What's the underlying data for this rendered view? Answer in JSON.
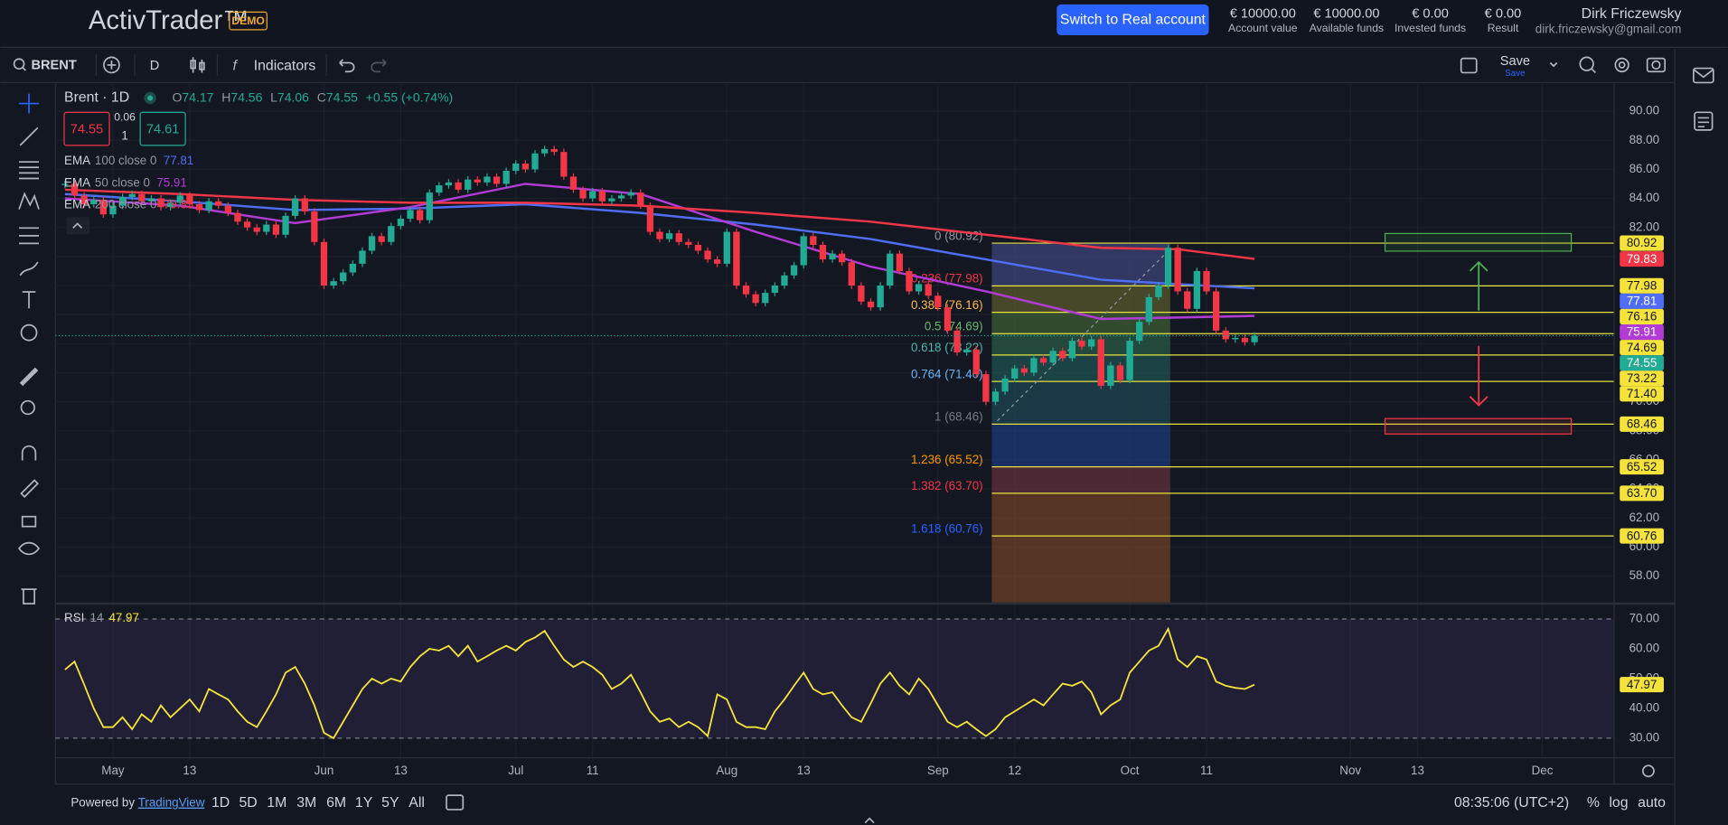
{
  "header": {
    "logo": "ActivTrader™",
    "badge": "DEMO",
    "button": "Switch to Real account",
    "stats": [
      {
        "value": "€ 10000.00",
        "label": "Account value"
      },
      {
        "value": "€ 10000.00",
        "label": "Available funds"
      },
      {
        "value": "€ 0.00",
        "label": "Invested funds"
      },
      {
        "value": "€ 0.00",
        "label": "Result"
      }
    ],
    "user": {
      "name": "Dirk Friczewsky",
      "email": "dirk.friczewsky@gmail.com"
    }
  },
  "toolbar": {
    "symbol": "BRENT",
    "interval": "D",
    "indicators": "Indicators",
    "save": "Save",
    "save_sub": "Save"
  },
  "legend": {
    "ohlc": [
      {
        "k": "O",
        "v": "74.17"
      },
      {
        "k": "H",
        "v": "74.56"
      },
      {
        "k": "L",
        "v": "74.06"
      },
      {
        "k": "C",
        "v": "74.55"
      }
    ],
    "change": "+0.55 (+0.74%)"
  },
  "trade": {
    "sell": "74.55",
    "spread": "0.06",
    "qty": "1",
    "buy": "74.61"
  },
  "chart_data": [
    {
      "type": "candlestick",
      "title": "Brent · 1D",
      "up_color": "#22ab94",
      "down_color": "#f23645",
      "grid": true,
      "values": [
        85.0,
        84.2,
        83.6,
        83.9,
        82.9,
        83.5,
        84.1,
        84.3,
        83.8,
        84.0,
        83.4,
        83.7,
        84.2,
        83.6,
        83.2,
        83.8,
        83.5,
        83.0,
        82.4,
        82.0,
        81.7,
        82.2,
        81.5,
        82.8,
        84.0,
        83.1,
        81.0,
        78.0,
        78.3,
        78.9,
        79.5,
        80.4,
        81.4,
        81.0,
        82.1,
        82.6,
        83.2,
        82.5,
        84.4,
        84.9,
        85.1,
        84.6,
        85.3,
        85.1,
        85.5,
        85.0,
        85.9,
        86.4,
        86.0,
        87.1,
        87.4,
        87.2,
        85.5,
        84.6,
        84.0,
        84.5,
        83.8,
        84.0,
        84.2,
        84.4,
        83.5,
        81.7,
        81.2,
        81.6,
        81.0,
        80.8,
        80.4,
        79.8,
        79.5,
        81.7,
        78.0,
        77.4,
        76.8,
        77.5,
        78.0,
        78.7,
        79.4,
        81.4,
        80.8,
        79.8,
        80.2,
        79.6,
        78.0,
        76.9,
        76.5,
        78.0,
        80.2,
        79.0,
        77.6,
        78.1,
        77.3,
        76.5,
        74.9,
        73.4,
        73.6,
        71.9,
        70.0,
        70.7,
        71.6,
        72.3,
        72.0,
        73.0,
        72.7,
        73.5,
        73.0,
        74.2,
        73.8,
        74.3,
        71.1,
        72.5,
        71.5,
        74.2,
        75.5,
        77.2,
        78.0,
        80.6,
        77.6,
        76.4,
        79.0,
        77.6,
        74.9,
        74.3,
        74.4,
        74.1,
        74.55
      ],
      "xlim": [
        -1,
        161.5
      ],
      "ylim": [
        56.18,
        91.82
      ],
      "yticks": [
        {
          "value": 58,
          "label": "58.00"
        },
        {
          "value": 60,
          "label": "60.00"
        },
        {
          "value": 62,
          "label": "62.00"
        },
        {
          "value": 64,
          "label": "64.00"
        },
        {
          "value": 66,
          "label": "66.00"
        },
        {
          "value": 68,
          "label": "68.00"
        },
        {
          "value": 70,
          "label": "70.00"
        },
        {
          "value": 72,
          "label": "72.00"
        },
        {
          "value": 74,
          "label": "74.00"
        },
        {
          "value": 76,
          "label": "76.00"
        },
        {
          "value": 78,
          "label": "78.00"
        },
        {
          "value": 80,
          "label": "80.00"
        },
        {
          "value": 82,
          "label": "82.00"
        },
        {
          "value": 84,
          "label": "84.00"
        },
        {
          "value": 86,
          "label": "86.00"
        },
        {
          "value": 88,
          "label": "88.00"
        },
        {
          "value": 90,
          "label": "90.00"
        }
      ],
      "ema": [
        {
          "name": "EMA",
          "params": "100 close 0",
          "last": 77.81,
          "color": "#4f6ef7",
          "x": [
            0,
            12,
            24,
            36,
            48,
            60,
            72,
            84,
            96,
            108,
            116,
            124
          ],
          "values": [
            84.3,
            83.8,
            83.2,
            83.3,
            83.6,
            83.0,
            82.2,
            81.2,
            79.8,
            78.4,
            78.1,
            77.81
          ]
        },
        {
          "name": "EMA",
          "params": "50 close 0",
          "last": 75.91,
          "color": "#b23bd6",
          "x": [
            0,
            12,
            24,
            36,
            48,
            60,
            72,
            84,
            96,
            108,
            116,
            124
          ],
          "values": [
            84.0,
            83.5,
            82.3,
            83.4,
            85.0,
            84.3,
            81.7,
            79.3,
            77.6,
            75.7,
            75.8,
            75.91
          ]
        },
        {
          "name": "EMA",
          "params": "200 close 0",
          "last": 79.83,
          "color": "#f23645",
          "x": [
            0,
            12,
            24,
            36,
            48,
            60,
            72,
            84,
            96,
            108,
            116,
            124
          ],
          "values": [
            84.6,
            84.3,
            83.9,
            83.7,
            83.7,
            83.5,
            83.0,
            82.4,
            81.5,
            80.6,
            80.5,
            79.83
          ]
        }
      ],
      "fib": [
        {
          "text": "0 (80.92)",
          "value": 80.92,
          "tag": "80.92",
          "color": "#9598a1",
          "fill": "#3c4478"
        },
        {
          "text": "0.236 (77.98)",
          "value": 77.98,
          "tag": "77.98",
          "color": "#f23645",
          "fill": "#5a5a2c"
        },
        {
          "text": "0.382 (76.16)",
          "value": 76.16,
          "tag": "76.16",
          "color": "#ffb74d",
          "fill": "#3e5e34"
        },
        {
          "text": "0.5 (74.69)",
          "value": 74.69,
          "tag": "74.69",
          "color": "#66bb6a",
          "fill": "#2a5a46"
        },
        {
          "text": "0.618 (73.22)",
          "value": 73.22,
          "tag": "73.22",
          "color": "#4db6ac",
          "fill": "#1f5352"
        },
        {
          "text": "0.764 (71.40)",
          "value": 71.4,
          "tag": "71.40",
          "color": "#64b5f6",
          "fill": "#1d4452"
        },
        {
          "text": "1 (68.46)",
          "value": 68.46,
          "tag": "68.46",
          "color": "#787b86",
          "fill": "#1f3a78"
        },
        {
          "text": "1.236 (65.52)",
          "value": 65.52,
          "tag": "65.52",
          "color": "#ff9800",
          "fill": "#60303c"
        },
        {
          "text": "1.382 (63.70)",
          "value": 63.7,
          "tag": "63.70",
          "color": "#f23645",
          "fill": "#6e4026"
        },
        {
          "text": "1.618 (60.76)",
          "value": 60.76,
          "tag": "60.76",
          "color": "#2962ff",
          "fill": "#6e4026"
        }
      ]
    },
    {
      "type": "line",
      "title": "RSI",
      "params": "14",
      "last": 47.97,
      "color": "#f5e33b",
      "band_color": "#7e57c2",
      "values": [
        53,
        55.7,
        48,
        40,
        33.7,
        33.7,
        37,
        33,
        38,
        35.5,
        41,
        37,
        40,
        43,
        39,
        46.5,
        44.7,
        43,
        39,
        35.5,
        33.7,
        39,
        44.7,
        52,
        53.9,
        48.3,
        41,
        31.8,
        30,
        35.5,
        41,
        46.5,
        50,
        48.3,
        50,
        49,
        53.9,
        57.5,
        60,
        59.4,
        61,
        57.5,
        61,
        55.7,
        57.5,
        59.4,
        61,
        59.4,
        62.3,
        63.8,
        66,
        61,
        56.4,
        53.9,
        55.7,
        53.9,
        51.3,
        46.5,
        48.3,
        51.3,
        45.4,
        39,
        35.5,
        36.6,
        33.7,
        35.5,
        33.7,
        30.7,
        44.7,
        43,
        35.5,
        33.7,
        33.7,
        33,
        39,
        43,
        47.6,
        52,
        46.5,
        44.7,
        45.4,
        41,
        37,
        35.5,
        41.7,
        48.3,
        52,
        47.6,
        44.7,
        50,
        46.5,
        41,
        35.5,
        33.7,
        35.5,
        33,
        30.7,
        33,
        37,
        39,
        41,
        43,
        41,
        44.7,
        48.3,
        47.6,
        49,
        45.4,
        38,
        41,
        43,
        52,
        55.7,
        59.4,
        61,
        66.7,
        56.4,
        53.9,
        57.5,
        56.4,
        49,
        47.6,
        46.9,
        46.5,
        47.97
      ],
      "xlim": [
        -1,
        161.5
      ],
      "ylim": [
        23.4,
        74.8
      ],
      "yticks": [
        {
          "value": 30,
          "label": "30.00"
        },
        {
          "value": 40,
          "label": "40.00"
        },
        {
          "value": 50,
          "label": "50.00"
        },
        {
          "value": 60,
          "label": "60.00"
        },
        {
          "value": 70,
          "label": "70.00"
        }
      ],
      "xticks": [
        {
          "value": 5,
          "label": "May"
        },
        13,
        {
          "value": 27,
          "label": "Jun"
        },
        {
          "value": 35,
          "label": "13"
        },
        {
          "value": 47,
          "label": "Jul"
        },
        {
          "value": 55,
          "label": "11"
        },
        {
          "value": 69,
          "label": "Aug"
        },
        {
          "value": 77,
          "label": "13"
        },
        {
          "value": 91,
          "label": "Sep"
        },
        {
          "value": 99,
          "label": "12"
        },
        {
          "value": 111,
          "label": "Oct"
        },
        {
          "value": 119,
          "label": "11"
        },
        {
          "value": 134,
          "label": "Nov"
        },
        {
          "value": 141,
          "label": "13"
        },
        {
          "value": 154,
          "label": "Dec"
        }
      ]
    }
  ],
  "footer": {
    "powered": "Powered by",
    "brand": "TradingView",
    "ranges": [
      "1D",
      "5D",
      "1M",
      "3M",
      "6M",
      "1Y",
      "5Y",
      "All"
    ],
    "time": "08:35:06 (UTC+2)",
    "percent": "%",
    "log": "log",
    "auto": "auto"
  }
}
